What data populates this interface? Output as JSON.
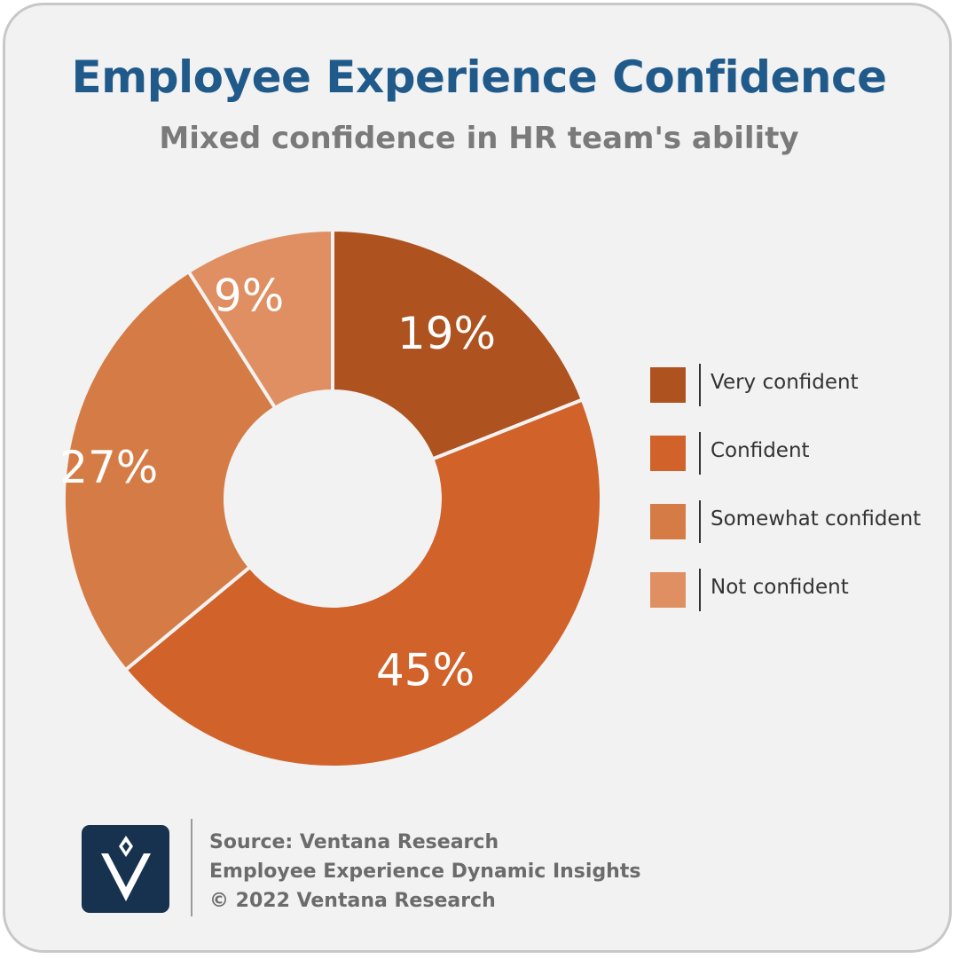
{
  "header": {
    "title": "Employee Experience Confidence",
    "subtitle": "Mixed confidence in HR team's ability"
  },
  "chart_data": {
    "type": "pie",
    "donut": true,
    "title": "Employee Experience Confidence",
    "subtitle": "Mixed confidence in HR team's ability",
    "categories": [
      "Very confident",
      "Confident",
      "Somewhat confident",
      "Not confident"
    ],
    "values": [
      19,
      45,
      27,
      9
    ],
    "labels": [
      "19%",
      "45%",
      "27%",
      "9%"
    ],
    "colors": [
      "#ae5220",
      "#d0622a",
      "#d57b45",
      "#df8f62"
    ],
    "legend_position": "right"
  },
  "legend": {
    "items": [
      {
        "label": "Very confident",
        "color": "#ae5220"
      },
      {
        "label": "Confident",
        "color": "#d0622a"
      },
      {
        "label": "Somewhat confident",
        "color": "#d57b45"
      },
      {
        "label": "Not confident",
        "color": "#df8f62"
      }
    ]
  },
  "footer": {
    "logo_icon": "ventana-v-logo-icon",
    "line1": "Source: Ventana Research",
    "line2": "Employee Experience Dynamic Insights",
    "line3": "© 2022 Ventana Research"
  }
}
